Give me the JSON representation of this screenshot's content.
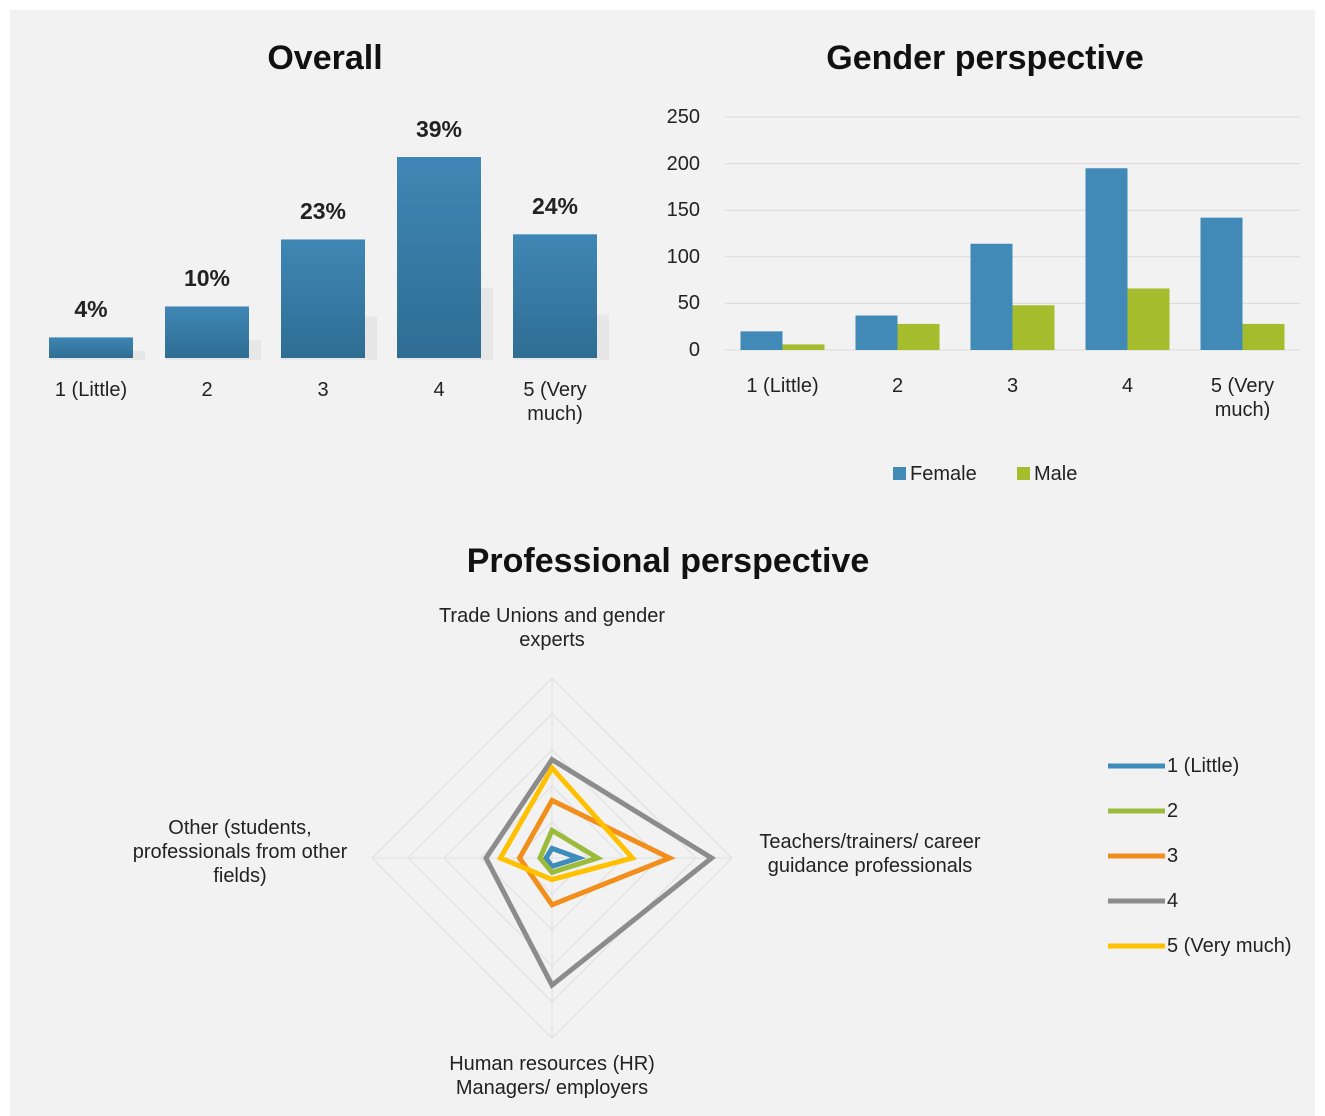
{
  "chart_data": [
    {
      "type": "bar",
      "title": "Overall",
      "categories": [
        "1 (Little)",
        "2",
        "3",
        "4",
        "5 (Very much)"
      ],
      "values": [
        4,
        10,
        23,
        39,
        24
      ],
      "value_labels": [
        "4%",
        "10%",
        "23%",
        "39%",
        "24%"
      ],
      "color": "#3f87b5"
    },
    {
      "type": "grouped_bar",
      "title": "Gender perspective",
      "categories": [
        "1 (Little)",
        "2",
        "3",
        "4",
        "5 (Very much)"
      ],
      "series": [
        {
          "name": "Female",
          "color": "#418ab8",
          "values": [
            20,
            37,
            114,
            195,
            142
          ]
        },
        {
          "name": "Male",
          "color": "#a5bd2d",
          "values": [
            6,
            28,
            48,
            66,
            28
          ]
        }
      ],
      "ylim": [
        0,
        250
      ],
      "yticks": [
        0,
        50,
        100,
        150,
        200,
        250
      ],
      "grid": true,
      "legend": "bottom"
    },
    {
      "type": "radar",
      "title": "Professional perspective",
      "categories": [
        "Trade Unions and gender experts",
        "Teachers/trainers/ career guidance professionals",
        "Human resources (HR) Managers/ employers",
        "Other (students, professionals from other fields)"
      ],
      "series": [
        {
          "name": "1 (Little)",
          "color": "#3d8cbc",
          "values": [
            8,
            22,
            7,
            5
          ]
        },
        {
          "name": "2",
          "color": "#9bbb3b",
          "values": [
            23,
            38,
            12,
            10
          ]
        },
        {
          "name": "3",
          "color": "#f28e1c",
          "values": [
            48,
            98,
            39,
            27
          ]
        },
        {
          "name": "4",
          "color": "#8c8c8c",
          "values": [
            82,
            133,
            106,
            55
          ]
        },
        {
          "name": "5 (Very much)",
          "color": "#ffc000",
          "values": [
            75,
            67,
            18,
            43
          ]
        }
      ],
      "rlim": [
        0,
        150
      ],
      "rticks": [
        30,
        60,
        90,
        120,
        150
      ],
      "grid": true,
      "legend": "right"
    }
  ]
}
